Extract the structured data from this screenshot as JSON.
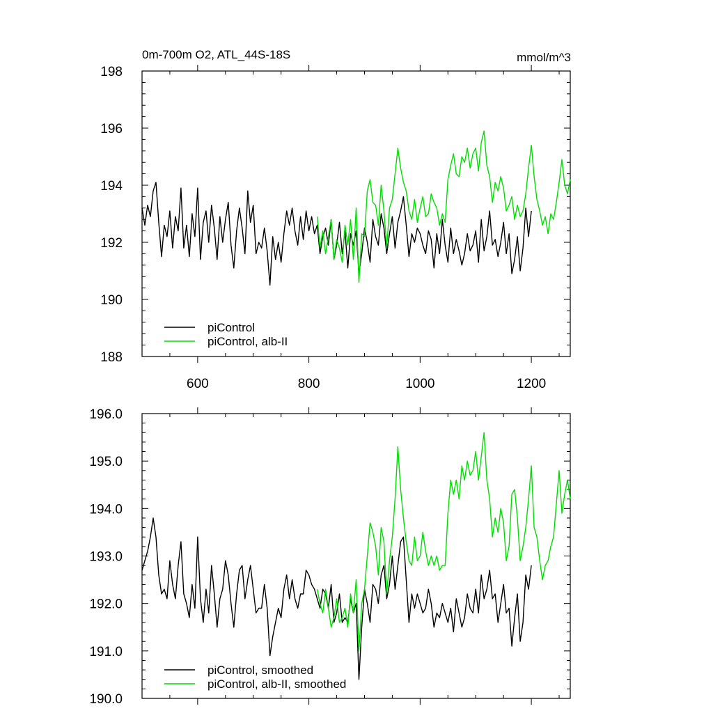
{
  "chart_data": [
    {
      "type": "line",
      "title": "0m-700m O2, ATL_44S-18S",
      "units": "mmol/m^3",
      "xlabel": "",
      "ylabel": "",
      "xlim": [
        500,
        1270
      ],
      "ylim": [
        188,
        198
      ],
      "x_ticks": [
        600,
        800,
        1000,
        1200
      ],
      "y_ticks": [
        188,
        190,
        192,
        194,
        196,
        198
      ],
      "legend_position": "bottom-left",
      "series": [
        {
          "name": "piControl",
          "color": "#000000",
          "x": [
            500,
            505,
            510,
            515,
            520,
            525,
            530,
            535,
            540,
            545,
            550,
            555,
            560,
            565,
            570,
            575,
            580,
            585,
            590,
            595,
            600,
            605,
            610,
            615,
            620,
            625,
            630,
            635,
            640,
            645,
            650,
            655,
            660,
            665,
            670,
            675,
            680,
            685,
            690,
            695,
            700,
            705,
            710,
            715,
            720,
            725,
            730,
            735,
            740,
            745,
            750,
            755,
            760,
            765,
            770,
            775,
            780,
            785,
            790,
            795,
            800,
            805,
            810,
            815,
            820,
            825,
            830,
            835,
            840,
            845,
            850,
            855,
            860,
            865,
            870,
            875,
            880,
            885,
            890,
            895,
            900,
            905,
            910,
            915,
            920,
            925,
            930,
            935,
            940,
            945,
            950,
            955,
            960,
            965,
            970,
            975,
            980,
            985,
            990,
            995,
            1000,
            1005,
            1010,
            1015,
            1020,
            1025,
            1030,
            1035,
            1040,
            1045,
            1050,
            1055,
            1060,
            1065,
            1070,
            1075,
            1080,
            1085,
            1090,
            1095,
            1100,
            1105,
            1110,
            1115,
            1120,
            1125,
            1130,
            1135,
            1140,
            1145,
            1150,
            1155,
            1160,
            1165,
            1170,
            1175,
            1180,
            1185,
            1190,
            1195,
            1200
          ],
          "y": [
            193.2,
            192.6,
            193.3,
            192.9,
            193.8,
            194.1,
            192.7,
            191.5,
            192.6,
            192.2,
            193.1,
            191.8,
            192.9,
            192.4,
            193.9,
            191.8,
            192.6,
            191.5,
            193.0,
            192.2,
            193.9,
            191.4,
            192.7,
            193.1,
            192.0,
            193.3,
            192.5,
            191.4,
            192.9,
            192.0,
            192.8,
            193.4,
            191.9,
            191.1,
            192.4,
            193.2,
            192.5,
            191.6,
            193.8,
            192.7,
            193.3,
            191.6,
            192.0,
            191.8,
            192.5,
            191.7,
            190.5,
            192.2,
            191.4,
            192.0,
            191.3,
            192.3,
            193.1,
            192.6,
            193.2,
            192.4,
            191.9,
            192.9,
            192.1,
            193.1,
            192.4,
            192.9,
            192.3,
            192.6,
            191.6,
            192.2,
            192.5,
            191.9,
            192.8,
            191.4,
            191.9,
            192.7,
            191.6,
            192.4,
            191.1,
            192.3,
            191.9,
            192.4,
            190.9,
            191.6,
            192.5,
            192.0,
            191.3,
            192.8,
            192.2,
            191.9,
            193.0,
            192.5,
            191.6,
            192.3,
            192.9,
            191.8,
            192.7,
            193.1,
            193.6,
            192.6,
            191.5,
            192.3,
            192.0,
            192.5,
            192.3,
            191.9,
            191.6,
            192.4,
            192.1,
            191.1,
            192.3,
            191.6,
            192.8,
            191.9,
            191.3,
            192.5,
            191.6,
            192.1,
            191.7,
            191.2,
            191.6,
            192.3,
            191.7,
            191.9,
            192.4,
            191.3,
            192.8,
            191.7,
            192.2,
            193.1,
            191.9,
            192.1,
            191.5,
            192.0,
            192.7,
            191.6,
            192.3,
            190.9,
            191.4,
            192.2,
            191.0,
            191.8,
            193.2,
            192.2,
            193.1
          ]
        },
        {
          "name": "piControl, alb-II",
          "color": "#00dd00",
          "x": [
            815,
            820,
            825,
            830,
            835,
            840,
            845,
            850,
            855,
            860,
            865,
            870,
            875,
            880,
            885,
            890,
            895,
            900,
            905,
            910,
            915,
            920,
            925,
            930,
            935,
            940,
            945,
            950,
            955,
            960,
            965,
            970,
            975,
            980,
            985,
            990,
            995,
            1000,
            1005,
            1010,
            1015,
            1020,
            1025,
            1030,
            1035,
            1040,
            1045,
            1050,
            1055,
            1060,
            1065,
            1070,
            1075,
            1080,
            1085,
            1090,
            1095,
            1100,
            1105,
            1110,
            1115,
            1120,
            1125,
            1130,
            1135,
            1140,
            1145,
            1150,
            1155,
            1160,
            1165,
            1170,
            1175,
            1180,
            1185,
            1190,
            1195,
            1200,
            1205,
            1210,
            1215,
            1220,
            1225,
            1230,
            1235,
            1240,
            1245,
            1250,
            1255,
            1260,
            1265,
            1270
          ],
          "y": [
            192.9,
            191.8,
            192.4,
            191.6,
            192.2,
            192.8,
            191.4,
            192.1,
            191.8,
            191.3,
            192.6,
            191.9,
            192.8,
            191.4,
            193.2,
            190.6,
            192.3,
            192.2,
            193.8,
            194.2,
            193.4,
            193.3,
            192.6,
            194.0,
            193.1,
            191.8,
            193.2,
            193.5,
            194.4,
            195.3,
            194.6,
            194.1,
            193.8,
            193.1,
            192.8,
            193.5,
            192.7,
            193.2,
            193.6,
            192.9,
            193.0,
            193.7,
            193.4,
            193.2,
            192.6,
            193.0,
            192.7,
            194.2,
            194.7,
            195.1,
            194.4,
            194.3,
            195.0,
            194.8,
            195.3,
            194.6,
            195.1,
            195.3,
            194.5,
            195.5,
            195.9,
            194.7,
            194.3,
            193.4,
            194.1,
            193.8,
            194.3,
            193.9,
            193.1,
            193.3,
            193.6,
            192.8,
            193.3,
            192.9,
            193.1,
            193.7,
            194.6,
            195.4,
            194.3,
            193.5,
            193.1,
            192.6,
            192.9,
            192.3,
            193.0,
            192.8,
            193.4,
            194.1,
            194.9,
            194.0,
            193.7,
            194.2
          ]
        }
      ]
    },
    {
      "type": "line",
      "title": "",
      "xlabel": "",
      "ylabel": "",
      "xlim": [
        500,
        1270
      ],
      "ylim": [
        190.0,
        196.0
      ],
      "y_ticks": [
        190.0,
        191.0,
        192.0,
        193.0,
        194.0,
        195.0,
        196.0
      ],
      "y_tick_labels": [
        "190.0",
        "191.0",
        "192.0",
        "193.0",
        "194.0",
        "195.0",
        "196.0"
      ],
      "legend_position": "bottom-left",
      "series": [
        {
          "name": "piControl, smoothed",
          "color": "#000000",
          "x": [
            500,
            505,
            510,
            515,
            520,
            525,
            530,
            535,
            540,
            545,
            550,
            555,
            560,
            565,
            570,
            575,
            580,
            585,
            590,
            595,
            600,
            605,
            610,
            615,
            620,
            625,
            630,
            635,
            640,
            645,
            650,
            655,
            660,
            665,
            670,
            675,
            680,
            685,
            690,
            695,
            700,
            705,
            710,
            715,
            720,
            725,
            730,
            735,
            740,
            745,
            750,
            755,
            760,
            765,
            770,
            775,
            780,
            785,
            790,
            795,
            800,
            805,
            810,
            815,
            820,
            825,
            830,
            835,
            840,
            845,
            850,
            855,
            860,
            865,
            870,
            875,
            880,
            885,
            890,
            895,
            900,
            905,
            910,
            915,
            920,
            925,
            930,
            935,
            940,
            945,
            950,
            955,
            960,
            965,
            970,
            975,
            980,
            985,
            990,
            995,
            1000,
            1005,
            1010,
            1015,
            1020,
            1025,
            1030,
            1035,
            1040,
            1045,
            1050,
            1055,
            1060,
            1065,
            1070,
            1075,
            1080,
            1085,
            1090,
            1095,
            1100,
            1105,
            1110,
            1115,
            1120,
            1125,
            1130,
            1135,
            1140,
            1145,
            1150,
            1155,
            1160,
            1165,
            1170,
            1175,
            1180,
            1185,
            1190,
            1195,
            1200
          ],
          "y": [
            192.7,
            192.9,
            193.1,
            193.4,
            193.8,
            193.4,
            192.6,
            192.2,
            192.3,
            192.1,
            192.9,
            192.4,
            192.1,
            192.8,
            193.3,
            192.2,
            192.0,
            191.7,
            192.4,
            191.9,
            193.4,
            192.1,
            191.6,
            192.3,
            191.8,
            192.8,
            192.2,
            191.5,
            192.1,
            192.3,
            192.9,
            192.6,
            192.0,
            191.5,
            192.2,
            192.7,
            192.8,
            192.1,
            192.5,
            192.8,
            192.3,
            191.8,
            191.9,
            191.9,
            192.4,
            191.9,
            190.9,
            191.3,
            191.6,
            191.9,
            191.7,
            192.3,
            192.6,
            192.1,
            192.5,
            192.1,
            191.9,
            192.2,
            192.2,
            192.7,
            192.6,
            192.4,
            192.3,
            192.1,
            191.9,
            192.3,
            192.2,
            191.9,
            192.4,
            191.6,
            191.8,
            192.2,
            191.6,
            191.7,
            191.6,
            192.1,
            191.8,
            192.0,
            190.4,
            191.5,
            192.3,
            192.0,
            191.6,
            192.4,
            192.3,
            192.0,
            192.6,
            192.8,
            192.1,
            192.4,
            193.0,
            192.3,
            192.8,
            193.3,
            193.4,
            192.5,
            191.6,
            192.2,
            191.9,
            192.2,
            192.0,
            191.8,
            191.9,
            192.3,
            192.0,
            191.5,
            191.8,
            191.7,
            192.0,
            191.8,
            191.6,
            191.9,
            191.4,
            192.1,
            191.8,
            191.5,
            191.7,
            192.2,
            191.9,
            191.8,
            192.3,
            191.8,
            192.6,
            192.1,
            192.3,
            192.7,
            192.1,
            192.2,
            191.6,
            192.0,
            192.4,
            191.8,
            191.9,
            191.1,
            191.7,
            192.2,
            191.2,
            191.6,
            192.6,
            192.3,
            192.8
          ]
        },
        {
          "name": "piControl, alb-II, smoothed",
          "color": "#00dd00",
          "x": [
            815,
            820,
            825,
            830,
            835,
            840,
            845,
            850,
            855,
            860,
            865,
            870,
            875,
            880,
            885,
            890,
            895,
            900,
            905,
            910,
            915,
            920,
            925,
            930,
            935,
            940,
            945,
            950,
            955,
            960,
            965,
            970,
            975,
            980,
            985,
            990,
            995,
            1000,
            1005,
            1010,
            1015,
            1020,
            1025,
            1030,
            1035,
            1040,
            1045,
            1050,
            1055,
            1060,
            1065,
            1070,
            1075,
            1080,
            1085,
            1090,
            1095,
            1100,
            1105,
            1110,
            1115,
            1120,
            1125,
            1130,
            1135,
            1140,
            1145,
            1150,
            1155,
            1160,
            1165,
            1170,
            1175,
            1180,
            1185,
            1190,
            1195,
            1200,
            1205,
            1210,
            1215,
            1220,
            1225,
            1230,
            1235,
            1240,
            1245,
            1250,
            1255,
            1260,
            1265,
            1270
          ],
          "y": [
            192.3,
            192.0,
            191.8,
            192.3,
            191.9,
            191.5,
            191.7,
            192.1,
            191.6,
            191.7,
            191.9,
            191.5,
            192.2,
            191.8,
            192.5,
            191.0,
            192.0,
            192.3,
            193.0,
            193.7,
            193.5,
            193.2,
            192.6,
            193.6,
            193.3,
            192.2,
            192.9,
            193.4,
            194.2,
            195.3,
            194.4,
            193.8,
            193.3,
            192.9,
            192.8,
            193.4,
            192.9,
            193.0,
            193.5,
            193.1,
            192.8,
            193.0,
            192.8,
            193.0,
            192.7,
            192.8,
            192.8,
            193.9,
            194.6,
            194.3,
            194.6,
            194.2,
            194.9,
            194.6,
            195.0,
            194.7,
            194.8,
            195.2,
            194.6,
            195.1,
            195.6,
            194.6,
            194.2,
            193.4,
            193.8,
            193.5,
            194.0,
            193.7,
            192.9,
            193.2,
            194.3,
            194.4,
            193.8,
            192.9,
            193.2,
            193.6,
            194.2,
            194.9,
            193.6,
            193.4,
            192.9,
            192.5,
            192.8,
            192.9,
            193.2,
            193.4,
            194.1,
            194.8,
            193.9,
            194.3,
            194.6,
            194.2
          ]
        }
      ]
    }
  ]
}
